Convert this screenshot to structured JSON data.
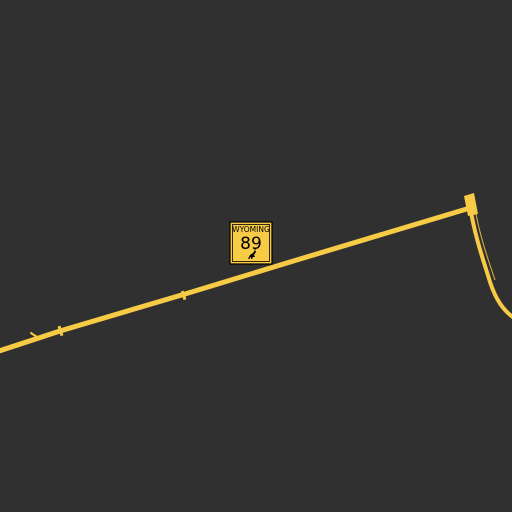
{
  "map": {
    "background_color": "#303030",
    "road_color": "#f7cb45",
    "road_edge_color": "#e0b23a",
    "shield": {
      "state": "WYOMING",
      "route_number": "89",
      "fill_color": "#f7cb45",
      "border_color": "#000000",
      "emblem_icon": "bucking-horse-icon"
    }
  }
}
